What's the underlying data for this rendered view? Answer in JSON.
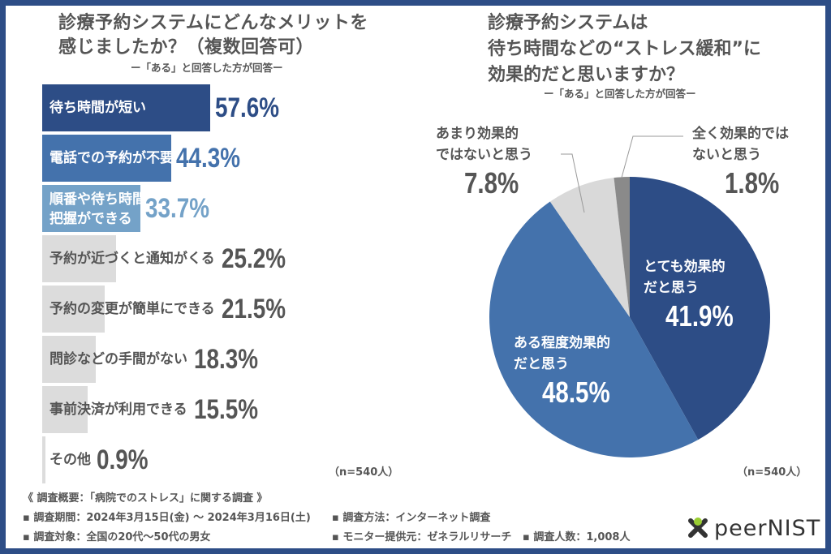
{
  "colors": {
    "frame": "#2d4d86",
    "navy": "#2d4d86",
    "mid_blue": "#4472ac",
    "light_blue": "#74a2c8",
    "gray_bar": "#dcdcdc",
    "text_gray": "#555555",
    "pie_light_gray": "#d9d9d9",
    "pie_dark_gray": "#8a8a8a",
    "logo_green": "#9acd32"
  },
  "left": {
    "title_line1": "診療予約システムにどんなメリットを",
    "title_line2": "感じましたか？（複数回答可）",
    "subtitle": "ー「ある」と回答した方が回答ー",
    "n_note": "（n=540人）"
  },
  "right": {
    "title_line1": "診療予約システムは",
    "title_line2": "待ち時間などの“ストレス緩和”に",
    "title_line3": "効果的だと思いますか？",
    "subtitle": "ー「ある」と回答した方が回答ー",
    "n_note": "（n=540人）"
  },
  "chart_data": [
    {
      "type": "bar",
      "orientation": "horizontal",
      "title": "診療予約システムにどんなメリットを感じましたか？（複数回答可）",
      "subtitle": "ー「ある」と回答した方が回答ー",
      "unit": "%",
      "categories": [
        [
          "待ち時間が短い"
        ],
        [
          "電話での予約が不要"
        ],
        [
          "順番や待ち時間の",
          "把握ができる"
        ],
        [
          "予約が近づくと通知がくる"
        ],
        [
          "予約の変更が簡単にできる"
        ],
        [
          "問診などの手間がない"
        ],
        [
          "事前決済が利用できる"
        ],
        [
          "その他"
        ]
      ],
      "values": [
        57.6,
        44.3,
        33.7,
        25.2,
        21.5,
        18.3,
        15.5,
        0.9
      ],
      "value_labels": [
        "57.6%",
        "44.3%",
        "33.7%",
        "25.2%",
        "21.5%",
        "18.3%",
        "15.5%",
        "0.9%"
      ],
      "n": "n=540人"
    },
    {
      "type": "pie",
      "title": "診療予約システムは待ち時間などの“ストレス緩和”に効果的だと思いますか？",
      "subtitle": "ー「ある」と回答した方が回答ー",
      "unit": "%",
      "slices": [
        {
          "label_lines": [
            "とても効果的",
            "だと思う"
          ],
          "value": 41.9,
          "value_label": "41.9%",
          "color": "#2d4d86"
        },
        {
          "label_lines": [
            "ある程度効果的",
            "だと思う"
          ],
          "value": 48.5,
          "value_label": "48.5%",
          "color": "#4472ac"
        },
        {
          "label_lines": [
            "あまり効果的",
            "ではないと思う"
          ],
          "value": 7.8,
          "value_label": "7.8%",
          "color": "#d9d9d9"
        },
        {
          "label_lines": [
            "全く効果的では",
            "ないと思う"
          ],
          "value": 1.8,
          "value_label": "1.8%",
          "color": "#8a8a8a"
        }
      ],
      "n": "n=540人"
    }
  ],
  "footer": {
    "heading": "《 調査概要：「病院でのストレス」に関する調査 》",
    "period": "▪ 調査期間：2024年3月15日(金) 〜 2024年3月16日(土)",
    "target": "▪ 調査対象：全国の20代〜50代の男女",
    "method": "▪ 調査方法：インターネット調査",
    "provider": "▪ モニター提供元：ゼネラルリサーチ",
    "count": "▪ 調査人数：1,008人"
  },
  "logo": {
    "text": "peerNIST",
    "icon": "peernist-x-logo-icon"
  }
}
